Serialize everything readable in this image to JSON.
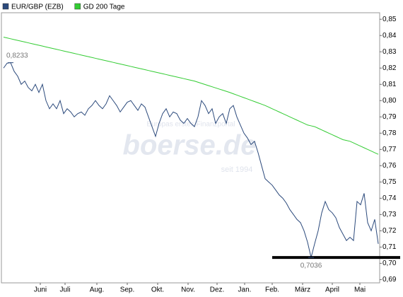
{
  "chart_data": {
    "type": "line",
    "watermark": {
      "top": "Europas erstes Finanzportal",
      "logo": "boerse.de",
      "bottom": "seit 1994"
    },
    "series": [
      {
        "name": "EUR/GBP (EZB)",
        "color": "#2c4a7c",
        "values": [
          0.82,
          0.823,
          0.8233,
          0.818,
          0.815,
          0.81,
          0.812,
          0.808,
          0.806,
          0.81,
          0.805,
          0.81,
          0.8,
          0.795,
          0.798,
          0.795,
          0.8,
          0.792,
          0.795,
          0.793,
          0.79,
          0.792,
          0.793,
          0.791,
          0.795,
          0.797,
          0.8,
          0.797,
          0.795,
          0.798,
          0.803,
          0.8,
          0.797,
          0.793,
          0.796,
          0.799,
          0.8,
          0.797,
          0.794,
          0.798,
          0.796,
          0.79,
          0.784,
          0.778,
          0.786,
          0.792,
          0.795,
          0.79,
          0.793,
          0.792,
          0.788,
          0.786,
          0.789,
          0.786,
          0.784,
          0.79,
          0.8,
          0.797,
          0.792,
          0.795,
          0.786,
          0.79,
          0.792,
          0.786,
          0.795,
          0.797,
          0.79,
          0.785,
          0.78,
          0.777,
          0.773,
          0.775,
          0.768,
          0.76,
          0.752,
          0.75,
          0.748,
          0.745,
          0.742,
          0.74,
          0.737,
          0.733,
          0.73,
          0.727,
          0.725,
          0.72,
          0.713,
          0.7036,
          0.712,
          0.72,
          0.731,
          0.738,
          0.733,
          0.731,
          0.728,
          0.722,
          0.718,
          0.714,
          0.716,
          0.714,
          0.738,
          0.736,
          0.743,
          0.725,
          0.72,
          0.727,
          0.712
        ]
      },
      {
        "name": "GD 200 Tage",
        "color": "#33cc33",
        "values": [
          0.839,
          0.8385,
          0.838,
          0.8375,
          0.837,
          0.8365,
          0.836,
          0.8355,
          0.835,
          0.8345,
          0.834,
          0.8335,
          0.833,
          0.8325,
          0.832,
          0.8315,
          0.831,
          0.8305,
          0.83,
          0.8295,
          0.829,
          0.8285,
          0.828,
          0.8275,
          0.827,
          0.8265,
          0.826,
          0.8255,
          0.825,
          0.8245,
          0.824,
          0.8235,
          0.823,
          0.8225,
          0.822,
          0.8215,
          0.821,
          0.8205,
          0.82,
          0.8195,
          0.819,
          0.8185,
          0.818,
          0.8175,
          0.817,
          0.8165,
          0.816,
          0.8155,
          0.815,
          0.8145,
          0.814,
          0.8135,
          0.813,
          0.8125,
          0.812,
          0.8113,
          0.8106,
          0.8099,
          0.8092,
          0.8085,
          0.8078,
          0.8071,
          0.8064,
          0.8057,
          0.805,
          0.8042,
          0.8034,
          0.8026,
          0.8018,
          0.801,
          0.8002,
          0.7994,
          0.7986,
          0.7978,
          0.797,
          0.796,
          0.795,
          0.794,
          0.793,
          0.792,
          0.791,
          0.79,
          0.789,
          0.788,
          0.787,
          0.786,
          0.785,
          0.7845,
          0.784,
          0.783,
          0.782,
          0.781,
          0.78,
          0.779,
          0.778,
          0.777,
          0.776,
          0.7755,
          0.775,
          0.774,
          0.773,
          0.772,
          0.771,
          0.77,
          0.769,
          0.768,
          0.767
        ]
      }
    ],
    "annotations": [
      {
        "label": "0,8233",
        "value": 0.8233
      },
      {
        "label": "0,7036",
        "value": 0.7036
      }
    ],
    "support_line": 0.7036,
    "xlim": [
      -0.6,
      106.4
    ],
    "xticks": [
      {
        "value": 10.4,
        "label": "Juni"
      },
      {
        "value": 17.4,
        "label": "Juli"
      },
      {
        "value": 26.4,
        "label": "Aug."
      },
      {
        "value": 35,
        "label": "Sep."
      },
      {
        "value": 43.6,
        "label": "Okt."
      },
      {
        "value": 52.2,
        "label": "Nov."
      },
      {
        "value": 60.4,
        "label": "Dez."
      },
      {
        "value": 68.2,
        "label": "Jan."
      },
      {
        "value": 76,
        "label": "Feb."
      },
      {
        "value": 84.6,
        "label": "März"
      },
      {
        "value": 93,
        "label": "April"
      },
      {
        "value": 100.8,
        "label": "Mai"
      }
    ],
    "ylim": [
      0.688,
      0.854
    ],
    "yticks": [
      {
        "value": 0.69,
        "label": "0,69"
      },
      {
        "value": 0.7,
        "label": "0,70"
      },
      {
        "value": 0.71,
        "label": "0,71"
      },
      {
        "value": 0.72,
        "label": "0,72"
      },
      {
        "value": 0.73,
        "label": "0,73"
      },
      {
        "value": 0.74,
        "label": "0,74"
      },
      {
        "value": 0.75,
        "label": "0,75"
      },
      {
        "value": 0.76,
        "label": "0,76"
      },
      {
        "value": 0.77,
        "label": "0,77"
      },
      {
        "value": 0.78,
        "label": "0,78"
      },
      {
        "value": 0.79,
        "label": "0,79"
      },
      {
        "value": 0.8,
        "label": "0,80"
      },
      {
        "value": 0.81,
        "label": "0,81"
      },
      {
        "value": 0.82,
        "label": "0,82"
      },
      {
        "value": 0.83,
        "label": "0,83"
      },
      {
        "value": 0.84,
        "label": "0,84"
      },
      {
        "value": 0.85,
        "label": "0,85"
      }
    ]
  }
}
